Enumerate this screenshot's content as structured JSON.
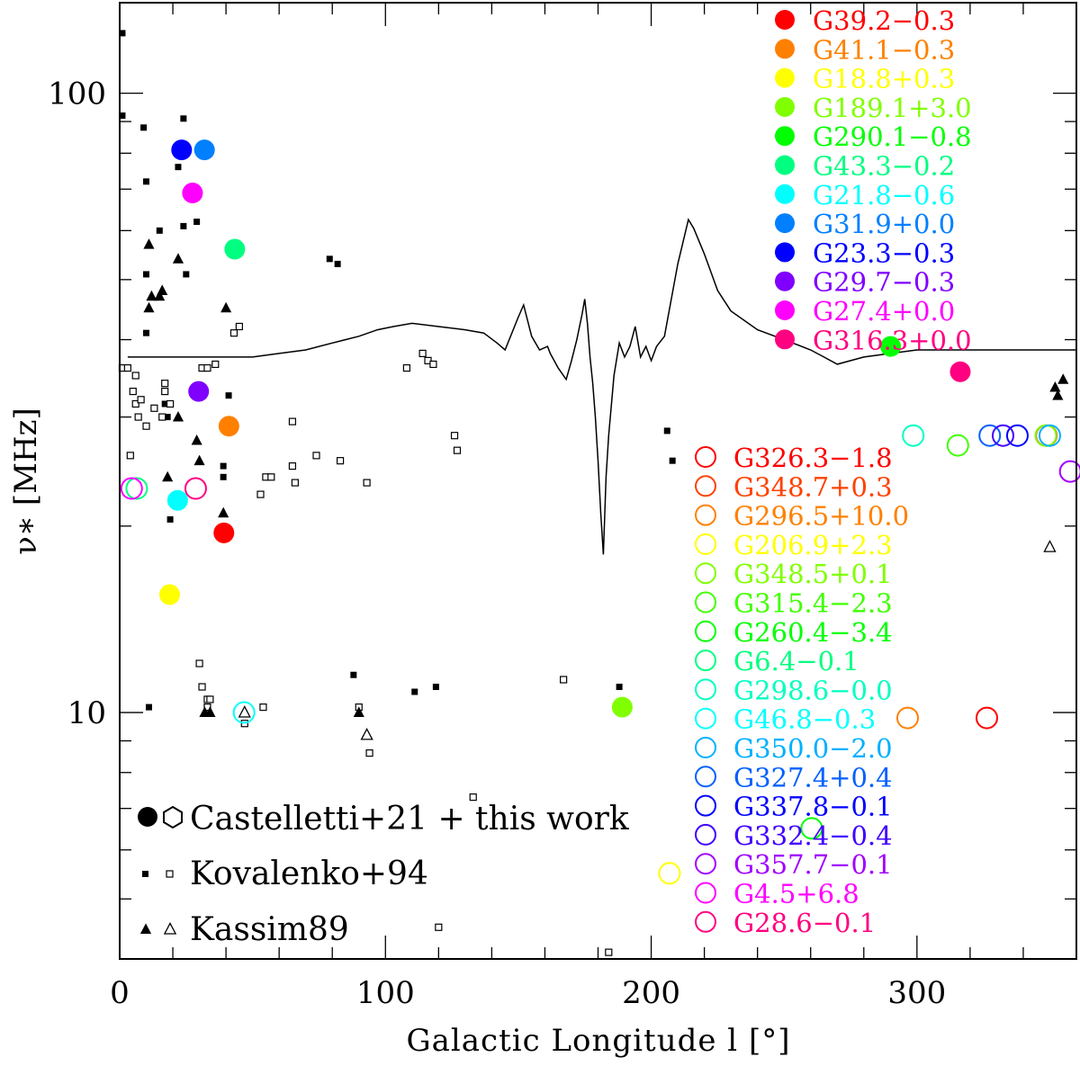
{
  "chart_data": {
    "type": "scatter",
    "xlabel": "Galactic Longitude l [°]",
    "ylabel": "ν∗ [MHz]",
    "xlim": [
      0,
      360
    ],
    "ylim": [
      4,
      140
    ],
    "yscale": "log",
    "x_ticks": [
      0,
      100,
      200,
      300
    ],
    "x_tick_labels": [
      "0",
      "100",
      "200",
      "300"
    ],
    "y_ticks": [
      10,
      100
    ],
    "y_tick_labels": [
      "10",
      "100"
    ],
    "legend_marker_labels": [
      "Castelletti+21 + this work",
      "Kovalenko+94",
      "Kassim89"
    ],
    "filled_sources": [
      {
        "name": "G39.2−0.3",
        "l": 39.2,
        "nu": 19.5,
        "color": "#ff0000"
      },
      {
        "name": "G41.1−0.3",
        "l": 41.1,
        "nu": 29.0,
        "color": "#ff8000"
      },
      {
        "name": "G18.8+0.3",
        "l": 18.8,
        "nu": 15.5,
        "color": "#ffff00"
      },
      {
        "name": "G189.1+3.0",
        "l": 189.1,
        "nu": 10.2,
        "color": "#80ff00"
      },
      {
        "name": "G290.1−0.8",
        "l": 290.1,
        "nu": 39.0,
        "color": "#00ff00"
      },
      {
        "name": "G43.3−0.2",
        "l": 43.3,
        "nu": 56.0,
        "color": "#00ff80"
      },
      {
        "name": "G21.8−0.6",
        "l": 21.8,
        "nu": 22.0,
        "color": "#00ffff"
      },
      {
        "name": "G31.9+0.0",
        "l": 31.9,
        "nu": 81.0,
        "color": "#0080ff"
      },
      {
        "name": "G23.3−0.3",
        "l": 23.3,
        "nu": 81.0,
        "color": "#0000ff"
      },
      {
        "name": "G29.7−0.3",
        "l": 29.7,
        "nu": 33.0,
        "color": "#8000ff"
      },
      {
        "name": "G27.4+0.0",
        "l": 27.4,
        "nu": 69.0,
        "color": "#ff00ff"
      },
      {
        "name": "G316.3+0.0",
        "l": 316.3,
        "nu": 35.5,
        "color": "#ff0080"
      }
    ],
    "open_sources": [
      {
        "name": "G326.3−1.8",
        "l": 326.3,
        "nu": 9.8,
        "color": "#ff0000"
      },
      {
        "name": "G348.7+0.3",
        "l": 348.7,
        "nu": 28.0,
        "color": "#ff4000"
      },
      {
        "name": "G296.5+10.0",
        "l": 296.5,
        "nu": 9.8,
        "color": "#ff8000"
      },
      {
        "name": "G206.9+2.3",
        "l": 206.9,
        "nu": 5.5,
        "color": "#ffff00"
      },
      {
        "name": "G348.5+0.1",
        "l": 348.5,
        "nu": 28.0,
        "color": "#80ff00"
      },
      {
        "name": "G315.4−2.3",
        "l": 315.4,
        "nu": 27.0,
        "color": "#40ff00"
      },
      {
        "name": "G260.4−3.4",
        "l": 260.4,
        "nu": 6.5,
        "color": "#00ff00"
      },
      {
        "name": "G6.4−0.1",
        "l": 6.4,
        "nu": 23.0,
        "color": "#00ff80"
      },
      {
        "name": "G298.6−0.0",
        "l": 298.6,
        "nu": 28.0,
        "color": "#00ffc0"
      },
      {
        "name": "G46.8−0.3",
        "l": 46.8,
        "nu": 10.0,
        "color": "#00ffff"
      },
      {
        "name": "G350.0−2.0",
        "l": 350.0,
        "nu": 28.0,
        "color": "#00b0ff"
      },
      {
        "name": "G327.4+0.4",
        "l": 327.4,
        "nu": 28.0,
        "color": "#0060ff"
      },
      {
        "name": "G337.8−0.1",
        "l": 337.8,
        "nu": 28.0,
        "color": "#0000ff"
      },
      {
        "name": "G332.4−0.4",
        "l": 332.4,
        "nu": 28.0,
        "color": "#4000ff"
      },
      {
        "name": "G357.7−0.1",
        "l": 357.7,
        "nu": 24.5,
        "color": "#a000ff"
      },
      {
        "name": "G4.5+6.8",
        "l": 4.5,
        "nu": 23.0,
        "color": "#ff00ff"
      },
      {
        "name": "G28.6−0.1",
        "l": 28.6,
        "nu": 23.0,
        "color": "#ff0080"
      }
    ],
    "kovalenko_filled": [
      [
        1,
        125
      ],
      [
        1,
        92
      ],
      [
        9,
        88
      ],
      [
        10,
        72
      ],
      [
        10,
        51
      ],
      [
        10,
        41
      ],
      [
        11,
        10.2
      ],
      [
        15,
        60
      ],
      [
        17,
        31.5
      ],
      [
        18,
        30
      ],
      [
        19,
        20.5
      ],
      [
        22,
        76
      ],
      [
        24,
        91
      ],
      [
        24,
        61
      ],
      [
        25,
        51
      ],
      [
        29,
        62
      ],
      [
        39,
        25
      ],
      [
        39,
        24
      ],
      [
        41,
        32.5
      ],
      [
        79,
        54
      ],
      [
        82,
        53
      ],
      [
        88,
        11.5
      ],
      [
        111,
        10.8
      ],
      [
        119,
        11
      ],
      [
        188,
        11
      ],
      [
        206,
        28.5
      ],
      [
        208,
        25.5
      ]
    ],
    "kovalenko_open": [
      [
        1,
        36
      ],
      [
        3,
        36
      ],
      [
        4,
        26
      ],
      [
        5,
        33
      ],
      [
        6,
        35
      ],
      [
        6,
        31.5
      ],
      [
        7,
        30
      ],
      [
        8,
        32
      ],
      [
        10,
        29
      ],
      [
        13,
        31
      ],
      [
        16,
        30
      ],
      [
        17,
        34
      ],
      [
        17,
        33
      ],
      [
        19,
        31.5
      ],
      [
        30,
        12
      ],
      [
        31,
        11
      ],
      [
        33,
        10.5
      ],
      [
        33,
        10.2
      ],
      [
        34,
        10.5
      ],
      [
        31,
        36
      ],
      [
        33,
        36
      ],
      [
        36,
        36.5
      ],
      [
        43,
        41
      ],
      [
        45,
        42
      ],
      [
        47,
        9.6
      ],
      [
        54,
        10.2
      ],
      [
        53,
        22.5
      ],
      [
        55,
        24
      ],
      [
        57,
        24
      ],
      [
        65,
        25
      ],
      [
        65,
        29.5
      ],
      [
        66,
        23.5
      ],
      [
        74,
        26
      ],
      [
        83,
        25.5
      ],
      [
        90,
        10.2
      ],
      [
        93,
        23.5
      ],
      [
        94,
        8.6
      ],
      [
        108,
        36
      ],
      [
        114,
        38
      ],
      [
        116,
        37
      ],
      [
        118,
        36.5
      ],
      [
        120,
        4.5
      ],
      [
        133,
        7.3
      ],
      [
        167,
        11.3
      ],
      [
        184,
        4.1
      ],
      [
        126,
        28
      ],
      [
        127,
        26.5
      ]
    ],
    "kassim_filled": [
      [
        11,
        57
      ],
      [
        11,
        45
      ],
      [
        12,
        47
      ],
      [
        15,
        47
      ],
      [
        16,
        48
      ],
      [
        18,
        24
      ],
      [
        22,
        54
      ],
      [
        22,
        30
      ],
      [
        29,
        27.5
      ],
      [
        30,
        25.5
      ],
      [
        32,
        10
      ],
      [
        34,
        10
      ],
      [
        34,
        10
      ],
      [
        39,
        21
      ],
      [
        40,
        45
      ],
      [
        90,
        10
      ],
      [
        352,
        33.5
      ],
      [
        353,
        32.5
      ],
      [
        355,
        34.5
      ]
    ],
    "kassim_open": [
      [
        47,
        10
      ],
      [
        93,
        9.2
      ],
      [
        350,
        18.5
      ]
    ],
    "curve": [
      [
        3,
        37.5
      ],
      [
        50,
        37.5
      ],
      [
        60,
        38
      ],
      [
        70,
        38.5
      ],
      [
        80,
        39.5
      ],
      [
        90,
        40.5
      ],
      [
        97,
        41.5
      ],
      [
        103,
        42
      ],
      [
        110,
        42.5
      ],
      [
        120,
        42
      ],
      [
        130,
        41.5
      ],
      [
        137,
        41
      ],
      [
        142,
        39.5
      ],
      [
        145,
        38.5
      ],
      [
        150,
        43.5
      ],
      [
        152,
        45.5
      ],
      [
        155,
        40.5
      ],
      [
        158,
        38.5
      ],
      [
        161,
        39
      ],
      [
        162,
        38
      ],
      [
        165,
        36
      ],
      [
        168,
        34.5
      ],
      [
        170,
        37
      ],
      [
        172,
        40
      ],
      [
        174,
        44
      ],
      [
        175,
        46.5
      ],
      [
        176,
        42.5
      ],
      [
        177,
        37.5
      ],
      [
        178,
        34
      ],
      [
        179,
        30
      ],
      [
        180,
        25.5
      ],
      [
        181,
        21
      ],
      [
        182,
        18
      ],
      [
        183,
        24
      ],
      [
        184,
        28
      ],
      [
        186,
        35
      ],
      [
        188,
        39.5
      ],
      [
        190,
        37.5
      ],
      [
        192,
        39
      ],
      [
        194,
        42
      ],
      [
        196,
        37.5
      ],
      [
        198,
        39
      ],
      [
        200,
        37
      ],
      [
        202,
        39
      ],
      [
        205,
        40.5
      ],
      [
        210,
        53
      ],
      [
        214,
        62.5
      ],
      [
        216,
        60.5
      ],
      [
        220,
        55
      ],
      [
        225,
        48
      ],
      [
        230,
        44.5
      ],
      [
        240,
        41.5
      ],
      [
        250,
        40
      ],
      [
        260,
        38.5
      ],
      [
        265,
        37.5
      ],
      [
        270,
        36.5
      ],
      [
        280,
        37.5
      ],
      [
        290,
        38
      ],
      [
        300,
        38.5
      ],
      [
        320,
        38.5
      ],
      [
        340,
        38.5
      ],
      [
        360,
        38.5
      ]
    ]
  }
}
